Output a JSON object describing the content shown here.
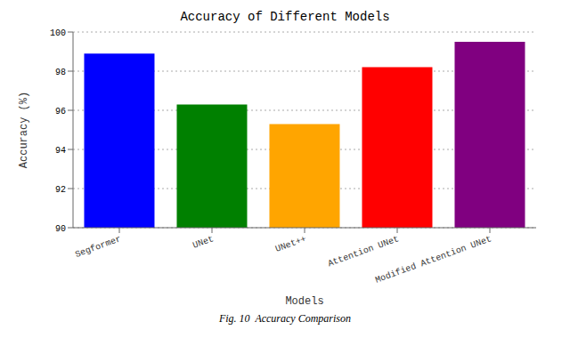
{
  "chart_data": {
    "type": "bar",
    "title": "Accuracy of Different Models",
    "xlabel": "Models",
    "ylabel": "Accuracy (%)",
    "categories": [
      "Segformer",
      "UNet",
      "UNet++",
      "Attention UNet",
      "Modified Attention UNet"
    ],
    "values": [
      98.9,
      96.3,
      95.3,
      98.2,
      99.5
    ],
    "colors": [
      "#0000FF",
      "#008000",
      "#FFA500",
      "#FF0000",
      "#800080"
    ],
    "ylim": [
      90,
      100
    ],
    "yticks": [
      90,
      92,
      94,
      96,
      98,
      100
    ],
    "grid": true,
    "caption": "Fig. 10  Accuracy Comparison"
  }
}
